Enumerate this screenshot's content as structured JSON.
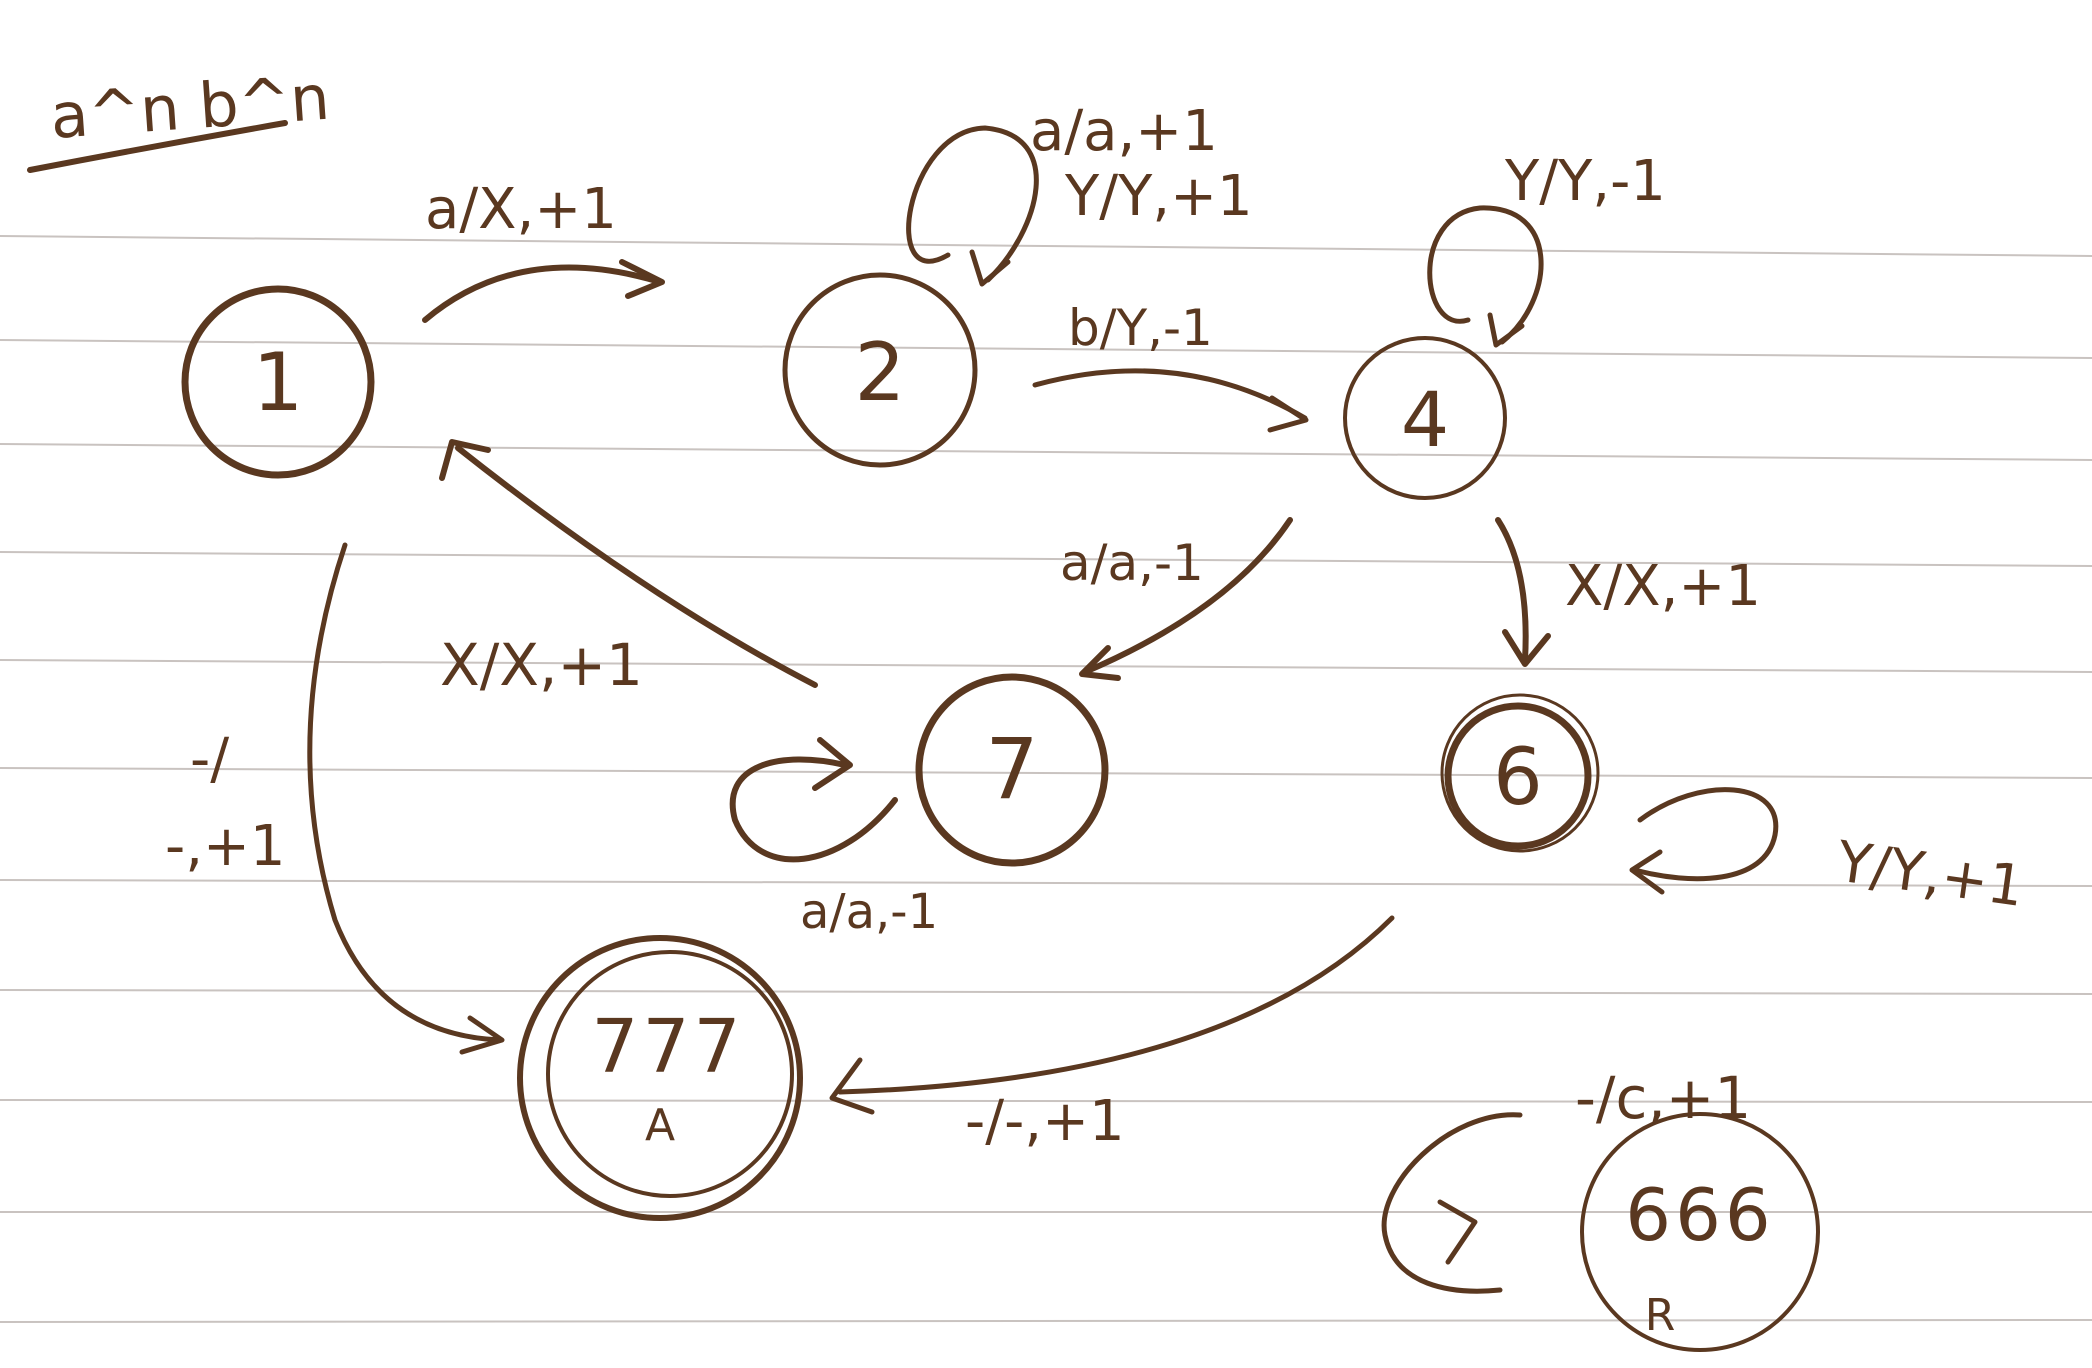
{
  "title": "a^n b^n",
  "colors": {
    "ink": "#5a3820",
    "paper": "#ffffff",
    "rule": "#c9c3c0"
  },
  "states": [
    {
      "id": "s1",
      "label": "1"
    },
    {
      "id": "s2",
      "label": "2"
    },
    {
      "id": "s4",
      "label": "4"
    },
    {
      "id": "s7",
      "label": "7"
    },
    {
      "id": "s6",
      "label": "6"
    },
    {
      "id": "accept",
      "label": "777",
      "sub": "A"
    },
    {
      "id": "reject",
      "label": "666",
      "sub": "R"
    }
  ],
  "transitions": [
    {
      "id": "t1_2",
      "label": "a/X,+1"
    },
    {
      "id": "t2_self",
      "label_line1": "a/a,+1",
      "label_line2": "Y/Y,+1"
    },
    {
      "id": "t2_4",
      "label": "b/Y,-1"
    },
    {
      "id": "t4_self",
      "label": "Y/Y,-1"
    },
    {
      "id": "t4_7",
      "label": "a/a,-1"
    },
    {
      "id": "t4_6",
      "label": "X/X,+1"
    },
    {
      "id": "t7_1",
      "label": "X/X,+1"
    },
    {
      "id": "t7_self",
      "label": "a/a,-1"
    },
    {
      "id": "t6_self",
      "label": "Y/Y,+1"
    },
    {
      "id": "t1_acc",
      "label_line1": "-/",
      "label_line2": "-,+1"
    },
    {
      "id": "t6_acc",
      "label": "-/-,+1"
    },
    {
      "id": "trej_self",
      "label": "-/c,+1"
    }
  ]
}
